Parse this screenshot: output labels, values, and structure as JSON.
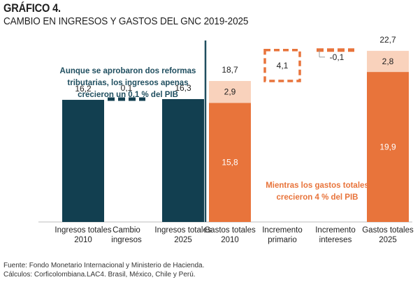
{
  "header": {
    "title": "GRÁFICO 4.",
    "subtitle": "CAMBIO EN INGRESOS Y GASTOS DEL GNC 2019-2025"
  },
  "annotations": {
    "revenue_note": "Aunque se aprobaron dos reformas tributarias, los ingresos apenas crecieron un 0,1 % del PIB",
    "expense_note": "Mientras los gastos totales crecieron 4 % del PIB"
  },
  "footer": {
    "source": "Fuente: Fondo Monetario Internacional y Ministerio de Hacienda.",
    "calc": "Cálculos: Corficolombiana.LAC4. Brasil, México, Chile y Perú."
  },
  "colors": {
    "navy": "#123f50",
    "orange": "#e8743b",
    "peach": "#f9d2bc",
    "divider": "#1f4e5f"
  },
  "chart_data": {
    "type": "waterfall",
    "ylim": [
      0,
      24
    ],
    "categories": [
      {
        "label": [
          "Ingresos totales",
          "2010"
        ],
        "kind": "total",
        "color": "navy",
        "segments": [
          {
            "value": 16.2,
            "label": "16,2"
          }
        ],
        "total_label": "16,2"
      },
      {
        "label": [
          "Cambio",
          "ingresos"
        ],
        "kind": "delta",
        "color": "navy",
        "base": 16.2,
        "delta": 0.1,
        "total_label": "0,1"
      },
      {
        "label": [
          "Ingresos totales",
          "2025"
        ],
        "kind": "total",
        "color": "navy",
        "segments": [
          {
            "value": 16.3,
            "label": "16,3"
          }
        ],
        "total_label": "16,3"
      },
      {
        "label": [
          "Gastos totales",
          "2010"
        ],
        "kind": "stacked",
        "segments": [
          {
            "value": 15.8,
            "label": "15,8",
            "color": "orange"
          },
          {
            "value": 2.9,
            "label": "2,9",
            "color": "peach"
          }
        ],
        "total_label": "18,7"
      },
      {
        "label": [
          "Incremento",
          "primario"
        ],
        "kind": "delta",
        "color": "orange",
        "base": 18.7,
        "delta": 4.1,
        "inner_label": "4,1"
      },
      {
        "label": [
          "Incremento",
          "intereses"
        ],
        "kind": "delta",
        "color": "orange",
        "base": 22.8,
        "delta": -0.1,
        "total_label": "-0,1"
      },
      {
        "label": [
          "Gastos totales",
          "2025"
        ],
        "kind": "stacked",
        "segments": [
          {
            "value": 19.9,
            "label": "19,9",
            "color": "orange"
          },
          {
            "value": 2.8,
            "label": "2,8",
            "color": "peach"
          }
        ],
        "total_label": "22,7"
      }
    ]
  }
}
